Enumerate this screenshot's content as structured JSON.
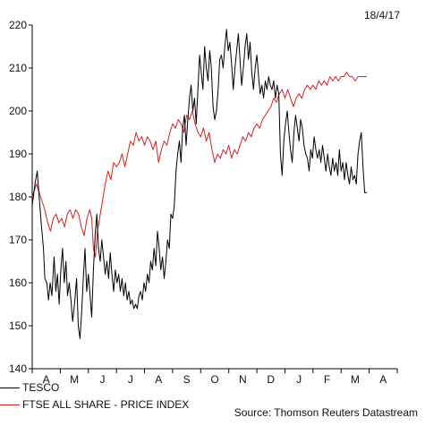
{
  "date_label": "18/4/17",
  "source": "Source: Thomson Reuters Datastream",
  "colors": {
    "tesco": "#000000",
    "ftse": "#d42020",
    "axis": "#000000"
  },
  "chart_data": {
    "type": "line",
    "ylim": [
      140,
      220
    ],
    "yticks": [
      140,
      150,
      160,
      170,
      180,
      190,
      200,
      210,
      220
    ],
    "months": [
      "A",
      "M",
      "J",
      "J",
      "A",
      "S",
      "O",
      "N",
      "D",
      "J",
      "F",
      "M",
      "A"
    ],
    "legend_position": "bottom-left",
    "series": [
      {
        "name": "TESCO",
        "color": "#000000",
        "points": [
          [
            0.0,
            178
          ],
          [
            0.1,
            183
          ],
          [
            0.18,
            186
          ],
          [
            0.25,
            180
          ],
          [
            0.32,
            174
          ],
          [
            0.4,
            168
          ],
          [
            0.45,
            161
          ],
          [
            0.52,
            160
          ],
          [
            0.58,
            156
          ],
          [
            0.64,
            160
          ],
          [
            0.7,
            157
          ],
          [
            0.78,
            166
          ],
          [
            0.84,
            158
          ],
          [
            0.9,
            162
          ],
          [
            0.96,
            155
          ],
          [
            1.02,
            163
          ],
          [
            1.08,
            168
          ],
          [
            1.14,
            160
          ],
          [
            1.2,
            165
          ],
          [
            1.26,
            157
          ],
          [
            1.32,
            160
          ],
          [
            1.38,
            156
          ],
          [
            1.44,
            151
          ],
          [
            1.52,
            156
          ],
          [
            1.58,
            161
          ],
          [
            1.64,
            150
          ],
          [
            1.7,
            147
          ],
          [
            1.76,
            153
          ],
          [
            1.82,
            161
          ],
          [
            1.88,
            168
          ],
          [
            1.94,
            158
          ],
          [
            2.0,
            162
          ],
          [
            2.06,
            157
          ],
          [
            2.12,
            152
          ],
          [
            2.18,
            163
          ],
          [
            2.24,
            171
          ],
          [
            2.3,
            176
          ],
          [
            2.36,
            168
          ],
          [
            2.42,
            165
          ],
          [
            2.48,
            170
          ],
          [
            2.54,
            166
          ],
          [
            2.6,
            162
          ],
          [
            2.66,
            165
          ],
          [
            2.72,
            161
          ],
          [
            2.78,
            167
          ],
          [
            2.84,
            162
          ],
          [
            2.9,
            158
          ],
          [
            2.96,
            163
          ],
          [
            3.02,
            160
          ],
          [
            3.08,
            162
          ],
          [
            3.14,
            158
          ],
          [
            3.2,
            161
          ],
          [
            3.26,
            157
          ],
          [
            3.32,
            160
          ],
          [
            3.38,
            156
          ],
          [
            3.44,
            158
          ],
          [
            3.5,
            155
          ],
          [
            3.56,
            156
          ],
          [
            3.62,
            154
          ],
          [
            3.68,
            155
          ],
          [
            3.74,
            154
          ],
          [
            3.8,
            157
          ],
          [
            3.86,
            158
          ],
          [
            3.92,
            156
          ],
          [
            3.98,
            160
          ],
          [
            4.04,
            158
          ],
          [
            4.1,
            162
          ],
          [
            4.16,
            160
          ],
          [
            4.22,
            165
          ],
          [
            4.28,
            163
          ],
          [
            4.34,
            168
          ],
          [
            4.4,
            164
          ],
          [
            4.46,
            172
          ],
          [
            4.52,
            168
          ],
          [
            4.58,
            163
          ],
          [
            4.64,
            166
          ],
          [
            4.7,
            161
          ],
          [
            4.76,
            165
          ],
          [
            4.82,
            170
          ],
          [
            4.88,
            168
          ],
          [
            4.94,
            176
          ],
          [
            5.0,
            175
          ],
          [
            5.06,
            178
          ],
          [
            5.12,
            186
          ],
          [
            5.18,
            190
          ],
          [
            5.24,
            193
          ],
          [
            5.3,
            188
          ],
          [
            5.36,
            196
          ],
          [
            5.42,
            199
          ],
          [
            5.48,
            192
          ],
          [
            5.54,
            198
          ],
          [
            5.6,
            203
          ],
          [
            5.66,
            206
          ],
          [
            5.72,
            200
          ],
          [
            5.78,
            203
          ],
          [
            5.84,
            197
          ],
          [
            5.9,
            205
          ],
          [
            5.96,
            213
          ],
          [
            6.02,
            209
          ],
          [
            6.08,
            205
          ],
          [
            6.14,
            215
          ],
          [
            6.2,
            210
          ],
          [
            6.26,
            207
          ],
          [
            6.32,
            214
          ],
          [
            6.38,
            210
          ],
          [
            6.44,
            201
          ],
          [
            6.5,
            198
          ],
          [
            6.56,
            200
          ],
          [
            6.62,
            205
          ],
          [
            6.68,
            212
          ],
          [
            6.74,
            213
          ],
          [
            6.8,
            210
          ],
          [
            6.86,
            215
          ],
          [
            6.92,
            219
          ],
          [
            6.98,
            214
          ],
          [
            7.04,
            216
          ],
          [
            7.1,
            211
          ],
          [
            7.16,
            205
          ],
          [
            7.22,
            210
          ],
          [
            7.28,
            214
          ],
          [
            7.34,
            218
          ],
          [
            7.4,
            212
          ],
          [
            7.46,
            206
          ],
          [
            7.52,
            210
          ],
          [
            7.58,
            215
          ],
          [
            7.64,
            218
          ],
          [
            7.7,
            212
          ],
          [
            7.76,
            216
          ],
          [
            7.82,
            209
          ],
          [
            7.88,
            205
          ],
          [
            7.94,
            210
          ],
          [
            8.0,
            213
          ],
          [
            8.06,
            208
          ],
          [
            8.12,
            204
          ],
          [
            8.18,
            206
          ],
          [
            8.24,
            203
          ],
          [
            8.3,
            207
          ],
          [
            8.36,
            205
          ],
          [
            8.42,
            208
          ],
          [
            8.48,
            206
          ],
          [
            8.54,
            205
          ],
          [
            8.6,
            207
          ],
          [
            8.66,
            203
          ],
          [
            8.72,
            206
          ],
          [
            8.78,
            204
          ],
          [
            8.84,
            190
          ],
          [
            8.9,
            185
          ],
          [
            8.96,
            193
          ],
          [
            9.02,
            197
          ],
          [
            9.08,
            200
          ],
          [
            9.14,
            195
          ],
          [
            9.2,
            191
          ],
          [
            9.26,
            188
          ],
          [
            9.32,
            195
          ],
          [
            9.38,
            199
          ],
          [
            9.44,
            196
          ],
          [
            9.5,
            193
          ],
          [
            9.56,
            198
          ],
          [
            9.62,
            196
          ],
          [
            9.68,
            192
          ],
          [
            9.74,
            190
          ],
          [
            9.8,
            189
          ],
          [
            9.86,
            186
          ],
          [
            9.92,
            191
          ],
          [
            9.98,
            189
          ],
          [
            10.04,
            194
          ],
          [
            10.1,
            191
          ],
          [
            10.16,
            189
          ],
          [
            10.22,
            191
          ],
          [
            10.28,
            188
          ],
          [
            10.34,
            192
          ],
          [
            10.4,
            189
          ],
          [
            10.46,
            186
          ],
          [
            10.52,
            190
          ],
          [
            10.58,
            187
          ],
          [
            10.64,
            185
          ],
          [
            10.7,
            189
          ],
          [
            10.76,
            186
          ],
          [
            10.82,
            188
          ],
          [
            10.88,
            185
          ],
          [
            10.94,
            191
          ],
          [
            11.0,
            186
          ],
          [
            11.06,
            188
          ],
          [
            11.12,
            184
          ],
          [
            11.18,
            188
          ],
          [
            11.24,
            185
          ],
          [
            11.3,
            183
          ],
          [
            11.36,
            187
          ],
          [
            11.42,
            184
          ],
          [
            11.48,
            185
          ],
          [
            11.54,
            183
          ],
          [
            11.6,
            190
          ],
          [
            11.66,
            193
          ],
          [
            11.72,
            195
          ],
          [
            11.78,
            187
          ],
          [
            11.84,
            181
          ],
          [
            11.92,
            181
          ]
        ]
      },
      {
        "name": "FTSE ALL SHARE - PRICE INDEX",
        "color": "#d42020",
        "points": [
          [
            0.0,
            180
          ],
          [
            0.15,
            183
          ],
          [
            0.3,
            180
          ],
          [
            0.45,
            177
          ],
          [
            0.55,
            174
          ],
          [
            0.65,
            172
          ],
          [
            0.75,
            175
          ],
          [
            0.85,
            176
          ],
          [
            0.95,
            174
          ],
          [
            1.05,
            175
          ],
          [
            1.15,
            173
          ],
          [
            1.25,
            176
          ],
          [
            1.35,
            177
          ],
          [
            1.45,
            175
          ],
          [
            1.55,
            177
          ],
          [
            1.65,
            176
          ],
          [
            1.75,
            173
          ],
          [
            1.85,
            171
          ],
          [
            1.95,
            175
          ],
          [
            2.05,
            177
          ],
          [
            2.12,
            175
          ],
          [
            2.18,
            168
          ],
          [
            2.25,
            166
          ],
          [
            2.32,
            172
          ],
          [
            2.4,
            175
          ],
          [
            2.5,
            179
          ],
          [
            2.6,
            183
          ],
          [
            2.7,
            186
          ],
          [
            2.8,
            184
          ],
          [
            2.9,
            188
          ],
          [
            3.0,
            187
          ],
          [
            3.1,
            188
          ],
          [
            3.2,
            190
          ],
          [
            3.3,
            187
          ],
          [
            3.4,
            190
          ],
          [
            3.5,
            193
          ],
          [
            3.6,
            192
          ],
          [
            3.7,
            195
          ],
          [
            3.8,
            193
          ],
          [
            3.9,
            194
          ],
          [
            4.0,
            192
          ],
          [
            4.1,
            194
          ],
          [
            4.2,
            193
          ],
          [
            4.3,
            191
          ],
          [
            4.4,
            193
          ],
          [
            4.5,
            188
          ],
          [
            4.6,
            191
          ],
          [
            4.7,
            193
          ],
          [
            4.8,
            192
          ],
          [
            4.9,
            195
          ],
          [
            5.0,
            197
          ],
          [
            5.1,
            196
          ],
          [
            5.2,
            198
          ],
          [
            5.3,
            197
          ],
          [
            5.4,
            195
          ],
          [
            5.5,
            199
          ],
          [
            5.6,
            198
          ],
          [
            5.7,
            200
          ],
          [
            5.8,
            197
          ],
          [
            5.9,
            195
          ],
          [
            6.0,
            194
          ],
          [
            6.1,
            196
          ],
          [
            6.2,
            193
          ],
          [
            6.3,
            195
          ],
          [
            6.4,
            191
          ],
          [
            6.5,
            188
          ],
          [
            6.6,
            190
          ],
          [
            6.7,
            189
          ],
          [
            6.8,
            191
          ],
          [
            6.9,
            190
          ],
          [
            7.0,
            192
          ],
          [
            7.1,
            189
          ],
          [
            7.2,
            191
          ],
          [
            7.3,
            190
          ],
          [
            7.4,
            192
          ],
          [
            7.5,
            194
          ],
          [
            7.6,
            193
          ],
          [
            7.7,
            195
          ],
          [
            7.8,
            194
          ],
          [
            7.9,
            196
          ],
          [
            8.0,
            197
          ],
          [
            8.1,
            196
          ],
          [
            8.2,
            198
          ],
          [
            8.3,
            199
          ],
          [
            8.4,
            200
          ],
          [
            8.5,
            201
          ],
          [
            8.6,
            203
          ],
          [
            8.7,
            202
          ],
          [
            8.8,
            204
          ],
          [
            8.9,
            205
          ],
          [
            9.0,
            203
          ],
          [
            9.1,
            205
          ],
          [
            9.2,
            203
          ],
          [
            9.3,
            201
          ],
          [
            9.4,
            203
          ],
          [
            9.5,
            204
          ],
          [
            9.6,
            203
          ],
          [
            9.7,
            205
          ],
          [
            9.8,
            206
          ],
          [
            9.9,
            205
          ],
          [
            10.0,
            206
          ],
          [
            10.1,
            205
          ],
          [
            10.2,
            207
          ],
          [
            10.3,
            206
          ],
          [
            10.4,
            207
          ],
          [
            10.5,
            206
          ],
          [
            10.6,
            208
          ],
          [
            10.7,
            207
          ],
          [
            10.8,
            208
          ],
          [
            10.9,
            207
          ],
          [
            11.0,
            208
          ],
          [
            11.1,
            208
          ],
          [
            11.2,
            209
          ],
          [
            11.3,
            208
          ],
          [
            11.4,
            208
          ],
          [
            11.5,
            207
          ],
          [
            11.6,
            208
          ],
          [
            11.7,
            208
          ],
          [
            11.8,
            208
          ],
          [
            11.92,
            208
          ]
        ]
      }
    ]
  }
}
